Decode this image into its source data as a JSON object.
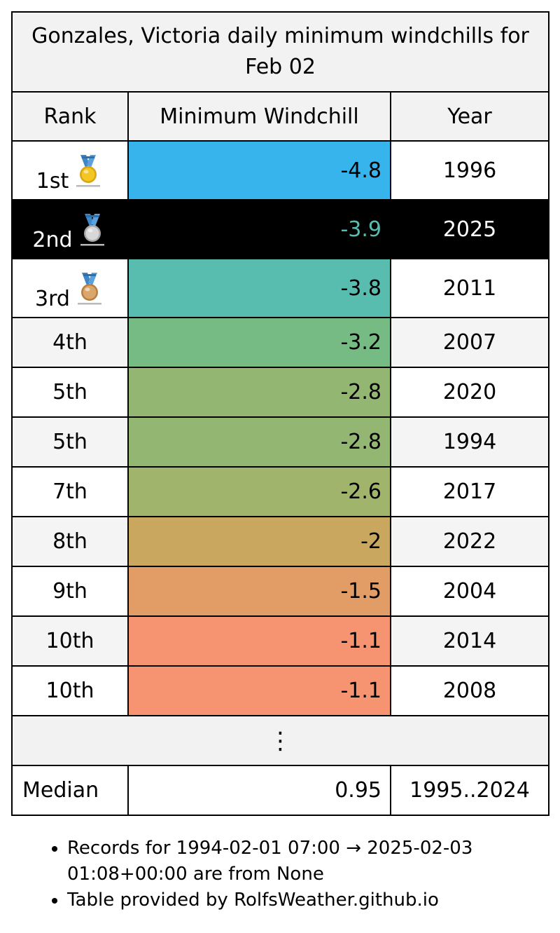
{
  "title": "Gonzales, Victoria daily minimum windchills for Feb 02",
  "headers": {
    "rank": "Rank",
    "value": "Minimum Windchill",
    "year": "Year"
  },
  "rows": [
    {
      "rank": "1st",
      "value": "-4.8",
      "year": "1996",
      "color": "#37b4ec",
      "medal": "gold-medal-icon"
    },
    {
      "rank": "2nd",
      "value": "-3.9",
      "year": "2025",
      "color": "#000000",
      "medal": "silver-medal-icon",
      "highlighted": true
    },
    {
      "rank": "3rd",
      "value": "-3.8",
      "year": "2011",
      "color": "#58bcae",
      "medal": "bronze-medal-icon"
    },
    {
      "rank": "4th",
      "value": "-3.2",
      "year": "2007",
      "color": "#76bb84"
    },
    {
      "rank": "5th",
      "value": "-2.8",
      "year": "2020",
      "color": "#93b772"
    },
    {
      "rank": "5th",
      "value": "-2.8",
      "year": "1994",
      "color": "#93b772"
    },
    {
      "rank": "7th",
      "value": "-2.6",
      "year": "2017",
      "color": "#a0b46c"
    },
    {
      "rank": "8th",
      "value": "-2",
      "year": "2022",
      "color": "#c9a75f"
    },
    {
      "rank": "9th",
      "value": "-1.5",
      "year": "2004",
      "color": "#e29c66"
    },
    {
      "rank": "10th",
      "value": "-1.1",
      "year": "2014",
      "color": "#f69370"
    },
    {
      "rank": "10th",
      "value": "-1.1",
      "year": "2008",
      "color": "#f69370"
    }
  ],
  "ellipsis": "⋮",
  "median": {
    "label": "Median",
    "value": "0.95",
    "years": "1995..2024"
  },
  "notes": [
    "Records for 1994-02-01 07:00 → 2025-02-03 01:08+00:00 are from None",
    "Table provided by RolfsWeather.github.io"
  ]
}
